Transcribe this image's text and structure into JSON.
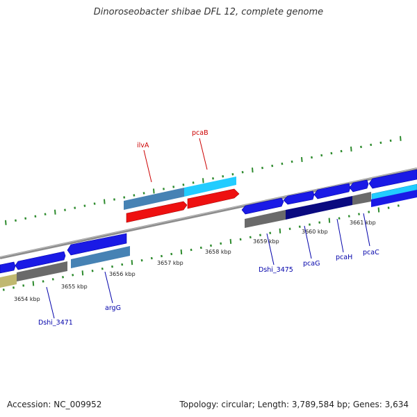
{
  "title": "Dinoroseobacter shibae DFL 12, complete genome",
  "footer": {
    "accession": "Accession: NC_009952",
    "summary": "Topology: circular; Length: 3,789,584 bp; Genes: 3,634"
  },
  "colors": {
    "backbone": "#888888",
    "tick": "#2e8b2e",
    "label_red": "#cc0000",
    "label_blue": "#0000aa",
    "blue": "#1a1ae6",
    "steelblue": "#4682b4",
    "gray": "#6a6a6a",
    "navy": "#0a0a80",
    "red": "#ee1111",
    "cyan": "#22ccff",
    "khaki": "#c0b870"
  },
  "kbp_labels": [
    "3654 kbp",
    "3655 kbp",
    "3656 kbp",
    "3657 kbp",
    "3658 kbp",
    "3659 kbp",
    "3660 kbp",
    "3661 kbp"
  ],
  "gene_labels": [
    {
      "name": "ilvA",
      "strand": "top"
    },
    {
      "name": "pcaB",
      "strand": "top"
    },
    {
      "name": "Dshi_3471",
      "strand": "bottom"
    },
    {
      "name": "argG",
      "strand": "bottom"
    },
    {
      "name": "Dshi_3475",
      "strand": "bottom"
    },
    {
      "name": "pcaG",
      "strand": "bottom"
    },
    {
      "name": "pcaH",
      "strand": "bottom"
    },
    {
      "name": "pcaC",
      "strand": "bottom"
    }
  ]
}
